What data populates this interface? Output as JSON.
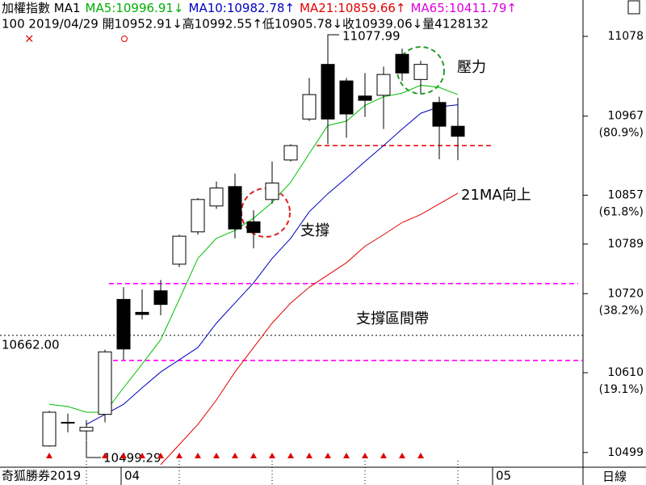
{
  "chart_data": {
    "type": "candlestick",
    "title": "加權指數",
    "period": "MA1",
    "legend": [
      {
        "text": "MA5:10996.91↓",
        "color": "#00b000"
      },
      {
        "text": "MA10:10982.78↑",
        "color": "#0000c0"
      },
      {
        "text": "MA21:10859.66↑",
        "color": "#e00000"
      },
      {
        "text": "MA65:10411.79↑",
        "color": "#e000e0"
      }
    ],
    "info": "100 2019/04/29 開10952.91↓高10992.55↑低10905.78↓收10939.06↓量4128132",
    "open": [
      10508,
      10540,
      10529,
      10552,
      10712,
      10694,
      10724,
      10761,
      10806,
      10842,
      10869,
      10820,
      10851,
      10906,
      10963,
      11039,
      11016,
      10995,
      10996,
      11053,
      11018,
      10986,
      10952.91
    ],
    "high": [
      10557,
      10553,
      10544,
      10642,
      10729,
      10726,
      10739,
      10802,
      10853,
      10876,
      10887,
      10836,
      10904,
      10928,
      11020,
      11077.99,
      11020,
      11027,
      11036,
      11061,
      11044,
      10994,
      10992.55
    ],
    "low": [
      10507,
      10527,
      10516,
      10541,
      10628,
      10684,
      10690,
      10757,
      10802,
      10838,
      10797,
      10783,
      10845,
      10904,
      10960,
      10928,
      10937,
      10966,
      10949,
      11016,
      10999,
      10907,
      10905.78
    ],
    "close": [
      10555,
      10541,
      10534,
      10639,
      10643,
      10691,
      10705,
      10800,
      10851,
      10867,
      10810,
      10805,
      10874,
      10926,
      10997,
      10963,
      10970,
      10989,
      11025,
      11027,
      11039,
      10953,
      10939.06
    ],
    "series": [
      {
        "color": "#00c000",
        "values": [
          10566,
          10563,
          10555,
          10555,
          10589,
          10622,
          10656,
          10712,
          10769,
          10797,
          10808,
          10825,
          10847,
          10875,
          10915,
          10954,
          10960,
          10982,
          10994,
          10999,
          11010,
          11007,
          10996.91
        ]
      },
      {
        "color": "#0000c0",
        "values": [
          null,
          null,
          10538,
          10552,
          10566,
          10589,
          10611,
          10628,
          10645,
          10679,
          10707,
          10735,
          10769,
          10797,
          10834,
          10859,
          10881,
          10904,
          10926,
          10949,
          10971,
          10980,
          10982.78
        ]
      },
      {
        "color": "#e00000",
        "values": [
          null,
          null,
          null,
          null,
          null,
          null,
          10482,
          10510,
          10538,
          10572,
          10611,
          10645,
          10679,
          10707,
          10729,
          10746,
          10763,
          10786,
          10802,
          10819,
          10830,
          10845,
          10859.66
        ]
      }
    ],
    "ylim": [
      10478.5,
      11128.6
    ],
    "yticks": [
      11078,
      10967,
      10857,
      10789,
      10720,
      10610,
      10499
    ],
    "fib_labels": [
      {
        "value": 10967,
        "label": "(80.9%)"
      },
      {
        "value": 10857,
        "label": "(61.8%)"
      },
      {
        "value": 10720,
        "label": "(38.2%)"
      },
      {
        "value": 10610,
        "label": "(19.1%)"
      }
    ],
    "reference_lines": [
      {
        "value": 10734,
        "color": "#ff00ff"
      },
      {
        "value": 10627,
        "color": "#ff00ff"
      },
      {
        "value": 10926,
        "color": "#e00000"
      },
      {
        "value": 10662,
        "color": "#000000",
        "label": "10662.00"
      }
    ],
    "high_label": "11077.99",
    "low_label": "10499.29",
    "annotations": [
      "壓力",
      "支撐",
      "21MA向上",
      "支撐區間帶"
    ],
    "footer": {
      "source": "奇狐勝券",
      "year": "2019",
      "months": [
        "04",
        "05"
      ],
      "frequency": "日線"
    }
  }
}
